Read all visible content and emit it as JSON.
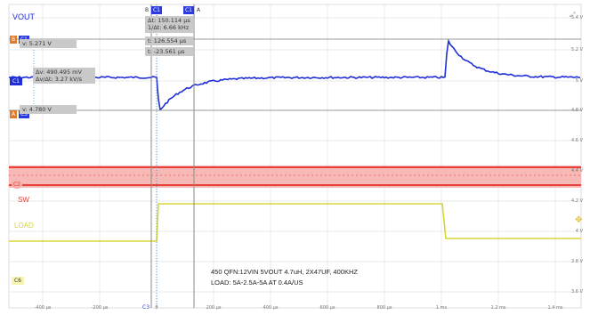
{
  "channels": {
    "vout": "VOUT",
    "sw": "SW",
    "load": "LOAD",
    "c1_tag": "C1",
    "c2_tag": "C2",
    "c3_tag": "C3",
    "c6_tag": "C6",
    "b_tag": "B",
    "a_tag": "A",
    "colors": {
      "vout": "#1f2ed6",
      "sw": "#e8403a",
      "load": "#d6d63a",
      "grid": "#e4e4e4"
    }
  },
  "cursor_readouts": {
    "v_b": "v: 5.271 V",
    "v_a": "v: 4.780 V",
    "delta_v": "Δv: 490.495 mV",
    "dv_dt": "Δv/Δt: 3.27 kV/s",
    "delta_t": "Δt: 150.114 µs",
    "inv_delta_t": "1/Δt: 6.66 kHz",
    "t_b": "t: 126.554 µs",
    "t_a": "t: -23.561 µs"
  },
  "annotation": {
    "line1": "450 QFN:12VIN 5VOUT 4.7uH, 2X47UF, 400KHZ",
    "line2": "LOAD: 5A-2.5A-5A AT 0.4A/US"
  },
  "y_axis_labels": [
    "5.4 V",
    "5.2 V",
    "5 V",
    "4.8 V",
    "4.6 V",
    "4.4 V",
    "4.2 V",
    "4 V",
    "3.8 V",
    "3.6 V"
  ],
  "x_axis_labels": [
    "-400 µs",
    "-200 µs",
    "0",
    "200 µs",
    "400 µs",
    "600 µs",
    "800 µs",
    "1 ms",
    "1.2 ms",
    "1.4 ms"
  ],
  "icons": {
    "zoom": "zoom-icon",
    "move": "move-cross-icon"
  }
}
